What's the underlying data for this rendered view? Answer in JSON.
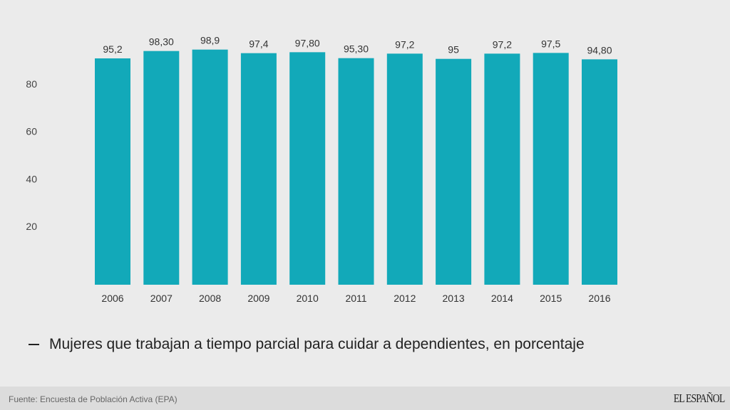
{
  "chart_data": {
    "type": "bar",
    "categories": [
      "2006",
      "2007",
      "2008",
      "2009",
      "2010",
      "2011",
      "2012",
      "2013",
      "2014",
      "2015",
      "2016"
    ],
    "values": [
      95.2,
      98.3,
      98.9,
      97.4,
      97.8,
      95.3,
      97.2,
      95,
      97.2,
      97.5,
      94.8
    ],
    "data_labels": [
      "95,2",
      "98,30",
      "98,9",
      "97,4",
      "97,80",
      "95,30",
      "97,2",
      "95",
      "97,2",
      "97,5",
      "94,80"
    ],
    "yticks": [
      20,
      40,
      60,
      80
    ],
    "ylim": [
      0,
      100
    ],
    "grid": false,
    "color": "#12a9b9",
    "legend": "Mujeres que trabajan a tiempo parcial para cuidar a dependientes, en porcentaje",
    "legend_position": "bottom-left"
  },
  "footer": {
    "source": "Fuente: Encuesta de Población Activa (EPA)",
    "logo": "EL ESPAÑOL"
  }
}
